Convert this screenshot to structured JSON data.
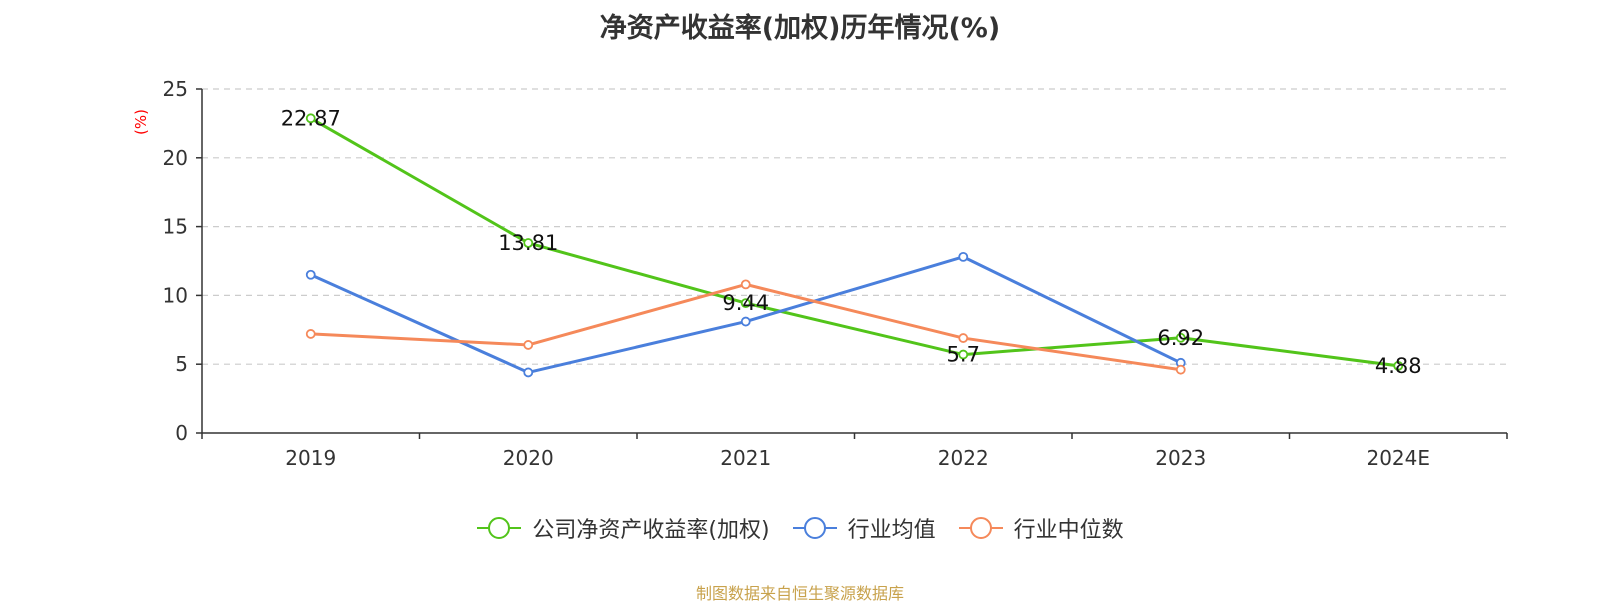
{
  "chart_data": {
    "type": "line",
    "title": "净资产收益率(加权)历年情况(%)",
    "ylabel": "(%)",
    "xlabel": "",
    "ylim": [
      0,
      25
    ],
    "yticks": [
      0,
      5,
      10,
      15,
      20,
      25
    ],
    "grid": true,
    "legend_position": "bottom",
    "categories": [
      "2019",
      "2020",
      "2021",
      "2022",
      "2023",
      "2024E"
    ],
    "series": [
      {
        "name": "公司净资产收益率(加权)",
        "color": "#52c41a",
        "values": [
          22.87,
          13.81,
          9.44,
          5.7,
          6.92,
          4.88
        ],
        "labels": [
          "22.87",
          "13.81",
          "9.44",
          "5.7",
          "6.92",
          "4.88"
        ]
      },
      {
        "name": "行业均值",
        "color": "#4a7fdc",
        "values": [
          11.5,
          4.4,
          8.1,
          12.8,
          5.1,
          null
        ]
      },
      {
        "name": "行业中位数",
        "color": "#f5895a",
        "values": [
          7.2,
          6.4,
          10.8,
          6.9,
          4.6,
          null
        ]
      }
    ],
    "source": "制图数据来自恒生聚源数据库"
  }
}
